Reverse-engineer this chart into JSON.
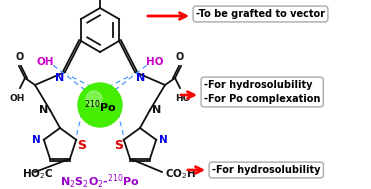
{
  "bg_color": "#ffffff",
  "po_color": "#44ee00",
  "po_label": "$^{210}$Po",
  "label_formula": "N$_2$S$_2$O$_2$-$^{210}$Po",
  "label_formula_color": "#9900cc",
  "arrow_color": "#ff0000",
  "box_text1": "-To be grafted to vector",
  "box_text2": "-For hydrosolubility\n-For Po complexation",
  "box_text3": "-For hydrosolubility",
  "n_color": "#0000ee",
  "s_color": "#dd0000",
  "oh_color": "#cc00cc",
  "bond_color": "#111111",
  "dashed_color": "#4499ff",
  "figsize": [
    3.71,
    1.89
  ],
  "dpi": 100
}
